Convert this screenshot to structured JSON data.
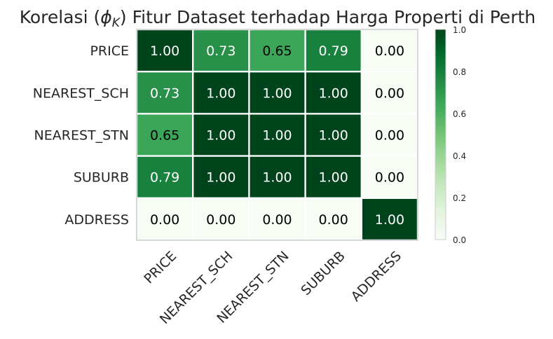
{
  "chart_data": {
    "type": "heatmap",
    "title": "Korelasi (ϕK) Fitur Dataset terhadap Harga Properti di Perth",
    "title_parts": {
      "before": "Korelasi (",
      "phi": "ϕ",
      "sub": "K",
      "after": ") Fitur Dataset terhadap Harga Properti di Perth"
    },
    "rows": [
      "PRICE",
      "NEAREST_SCH",
      "NEAREST_STN",
      "SUBURB",
      "ADDRESS"
    ],
    "columns": [
      "PRICE",
      "NEAREST_SCH",
      "NEAREST_STN",
      "SUBURB",
      "ADDRESS"
    ],
    "values": [
      [
        1.0,
        0.73,
        0.65,
        0.79,
        0.0
      ],
      [
        0.73,
        1.0,
        1.0,
        1.0,
        0.0
      ],
      [
        0.65,
        1.0,
        1.0,
        1.0,
        0.0
      ],
      [
        0.79,
        1.0,
        1.0,
        1.0,
        0.0
      ],
      [
        0.0,
        0.0,
        0.0,
        0.0,
        1.0
      ]
    ],
    "value_format": "0.00",
    "colormap": "Greens",
    "colormap_stops": [
      "#f7fcf5",
      "#e5f5e0",
      "#c7e9c0",
      "#a1d99b",
      "#74c476",
      "#41ab5d",
      "#238b45",
      "#006d2c",
      "#00441b"
    ],
    "vmin": 0.0,
    "vmax": 1.0,
    "colorbar_ticks": [
      "0.0",
      "0.2",
      "0.4",
      "0.6",
      "0.8",
      "1.0"
    ],
    "grid": false
  }
}
